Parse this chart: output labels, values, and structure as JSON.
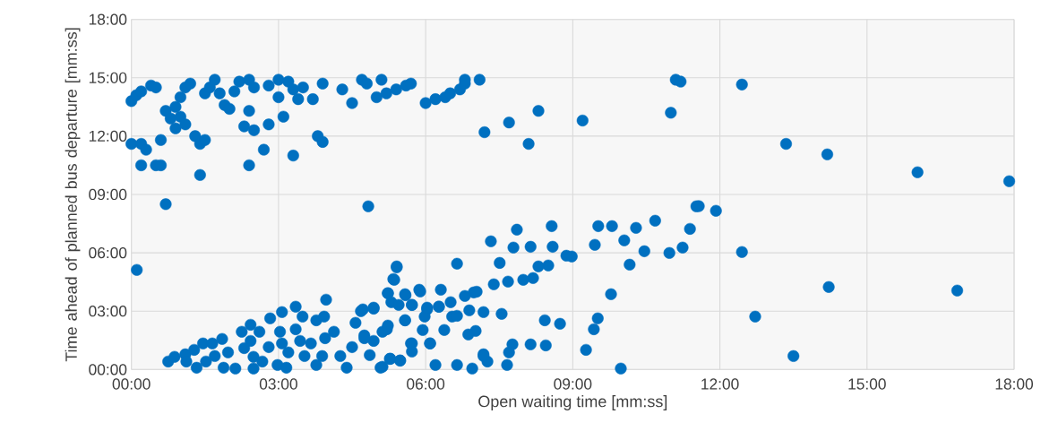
{
  "chart_data": {
    "type": "scatter",
    "xlabel": "Open waiting time [mm:ss]",
    "ylabel": "Time ahead of planned bus departure [mm:ss]",
    "xlim": [
      0,
      18
    ],
    "ylim": [
      0,
      18
    ],
    "xticks": [
      {
        "value": 0,
        "label": "00:00"
      },
      {
        "value": 3,
        "label": "03:00"
      },
      {
        "value": 6,
        "label": "06:00"
      },
      {
        "value": 9,
        "label": "09:00"
      },
      {
        "value": 12,
        "label": "12:00"
      },
      {
        "value": 15,
        "label": "15:00"
      },
      {
        "value": 18,
        "label": "18:00"
      }
    ],
    "yticks": [
      {
        "value": 0,
        "label": "00:00"
      },
      {
        "value": 3,
        "label": "03:00"
      },
      {
        "value": 6,
        "label": "06:00"
      },
      {
        "value": 9,
        "label": "09:00"
      },
      {
        "value": 12,
        "label": "12:00"
      },
      {
        "value": 15,
        "label": "15:00"
      },
      {
        "value": 18,
        "label": "18:00"
      }
    ],
    "grid": true,
    "marker": "circle",
    "color": "#0070c0",
    "x": [
      0.0,
      0.1,
      0.2,
      0.4,
      0.5,
      0.0,
      0.2,
      0.3,
      0.2,
      0.5,
      0.6,
      0.6,
      0.9,
      0.7,
      0.8,
      0.9,
      1.0,
      1.1,
      1.2,
      1.0,
      1.1,
      1.3,
      1.4,
      1.5,
      1.4,
      1.5,
      1.6,
      1.7,
      1.8,
      1.9,
      2.0,
      2.1,
      2.2,
      2.4,
      2.5,
      2.4,
      2.5,
      2.3,
      2.4,
      2.7,
      2.8,
      2.8,
      3.0,
      3.2,
      3.3,
      3.0,
      3.1,
      3.3,
      3.4,
      3.5,
      3.7,
      3.9,
      3.8,
      3.9,
      4.3,
      4.5,
      4.7,
      4.8,
      5.1,
      5.0,
      5.2,
      5.4,
      5.6,
      5.7,
      6.0,
      6.2,
      6.4,
      6.5,
      6.7,
      6.8,
      6.8,
      7.1,
      7.2,
      7.7,
      8.1,
      8.3,
      9.2,
      11.0,
      11.1,
      11.2,
      12.45,
      13.35,
      14.19,
      16.03,
      17.9,
      0.7,
      4.83,
      0.11,
      11.92,
      11.57,
      12.45,
      14.22,
      16.84,
      12.72,
      13.5,
      7.33,
      7.86,
      8.57,
      7.79,
      8.14,
      8.59,
      9.52,
      9.8,
      10.29,
      10.68,
      11.52,
      11.39,
      9.45,
      10.05,
      10.46,
      10.97,
      11.24,
      10.16,
      8.87,
      8.98,
      8.5,
      8.3,
      8.19,
      7.99,
      7.68,
      7.39,
      7.51,
      6.64,
      6.98,
      6.8,
      6.31,
      5.89,
      5.41,
      5.34,
      5.23,
      5.59,
      5.72,
      6.03,
      6.27,
      6.51,
      6.89,
      7.18,
      7.55,
      6.54,
      8.43,
      8.74,
      9.51,
      9.43,
      9.78,
      9.27,
      9.98,
      8.14,
      8.45,
      7.77,
      7.7,
      7.66,
      7.18,
      7.26,
      6.95,
      6.64,
      6.2,
      7.02,
      6.87,
      6.38,
      6.09,
      5.7,
      5.72,
      5.48,
      5.28,
      5.12,
      4.94,
      4.86,
      4.75,
      4.72,
      4.94,
      5.21,
      5.58,
      5.94,
      5.98,
      0.75,
      0.88,
      1.1,
      1.28,
      1.33,
      1.46,
      1.12,
      1.65,
      1.85,
      1.88,
      2.12,
      1.52,
      1.7,
      1.97,
      2.25,
      2.43,
      2.61,
      2.83,
      3.07,
      3.35,
      3.49,
      3.77,
      3.93,
      3.97,
      2.43,
      2.3,
      2.49,
      2.49,
      2.67,
      2.8,
      3.03,
      3.07,
      3.2,
      3.35,
      3.44,
      2.98,
      3.16,
      3.53,
      3.66,
      3.77,
      3.89,
      3.95,
      4.13,
      4.26,
      4.39,
      4.5,
      4.57,
      4.68,
      4.94,
      4.75,
      5.08,
      5.27,
      5.48,
      5.12,
      5.23,
      5.23,
      5.36,
      5.41,
      5.3,
      5.45,
      5.58,
      5.72,
      5.58,
      5.72,
      5.87,
      6.03,
      6.27,
      6.09,
      6.64,
      7.18,
      7.04
    ],
    "values": [
      13.8,
      14.1,
      14.3,
      14.6,
      14.5,
      11.6,
      11.6,
      11.3,
      10.5,
      10.5,
      10.5,
      11.8,
      12.4,
      13.3,
      12.9,
      13.5,
      14.0,
      14.5,
      14.7,
      13.0,
      12.6,
      12.0,
      11.6,
      11.8,
      10.0,
      14.2,
      14.5,
      14.9,
      14.2,
      13.6,
      13.4,
      14.3,
      14.8,
      14.9,
      14.5,
      13.3,
      12.3,
      12.5,
      10.5,
      11.3,
      12.6,
      14.6,
      14.9,
      14.8,
      14.4,
      14.0,
      13.0,
      11.0,
      13.9,
      14.5,
      13.9,
      14.7,
      12.0,
      11.7,
      14.4,
      13.7,
      14.9,
      14.7,
      14.9,
      14.0,
      14.2,
      14.4,
      14.6,
      14.7,
      13.7,
      13.9,
      14.0,
      14.2,
      14.4,
      14.7,
      14.9,
      14.9,
      12.2,
      12.7,
      11.6,
      13.3,
      12.8,
      13.2,
      14.9,
      14.8,
      14.65,
      11.6,
      11.06,
      10.14,
      9.68,
      8.5,
      8.39,
      5.12,
      8.16,
      8.4,
      6.04,
      4.24,
      4.06,
      2.72,
      0.69,
      6.59,
      7.19,
      7.37,
      6.27,
      6.31,
      6.31,
      7.37,
      7.37,
      7.28,
      7.65,
      8.39,
      7.23,
      6.41,
      6.64,
      6.08,
      5.99,
      6.27,
      5.39,
      5.85,
      5.81,
      5.35,
      5.3,
      4.7,
      4.61,
      4.52,
      4.38,
      5.48,
      5.44,
      3.96,
      3.78,
      4.1,
      4.01,
      5.25,
      4.65,
      3.92,
      3.82,
      3.32,
      3.09,
      3.23,
      3.46,
      3.04,
      2.95,
      2.86,
      2.72,
      2.53,
      2.35,
      2.63,
      2.07,
      3.87,
      1.01,
      0.05,
      1.29,
      1.24,
      1.29,
      0.88,
      0.23,
      0.78,
      0.41,
      0.05,
      0.23,
      0.23,
      1.98,
      1.8,
      2.03,
      1.34,
      1.34,
      0.92,
      0.46,
      0.55,
      0.14,
      1.47,
      0.74,
      1.75,
      3.09,
      3.13,
      2.07,
      2.53,
      2.03,
      2.72,
      0.41,
      0.65,
      0.78,
      1.01,
      0.09,
      1.34,
      0.41,
      1.34,
      1.57,
      0.09,
      0.05,
      0.41,
      0.69,
      0.88,
      1.94,
      2.3,
      1.94,
      2.63,
      2.95,
      3.23,
      2.72,
      2.53,
      2.72,
      3.59,
      1.47,
      1.1,
      0.65,
      0.05,
      0.41,
      1.15,
      1.94,
      1.34,
      0.88,
      2.07,
      1.47,
      0.23,
      0.09,
      0.69,
      1.34,
      0.23,
      0.69,
      1.61,
      1.94,
      0.69,
      0.09,
      1.15,
      2.4,
      3.0,
      3.18,
      1.61,
      0.09,
      0.55,
      0.46,
      1.94,
      2.26,
      3.92,
      4.61,
      5.3,
      3.46,
      3.32,
      3.87,
      3.32,
      2.53,
      1.34,
      4.1,
      3.18,
      3.23,
      1.34,
      2.76,
      0.69,
      4.0
    ]
  }
}
